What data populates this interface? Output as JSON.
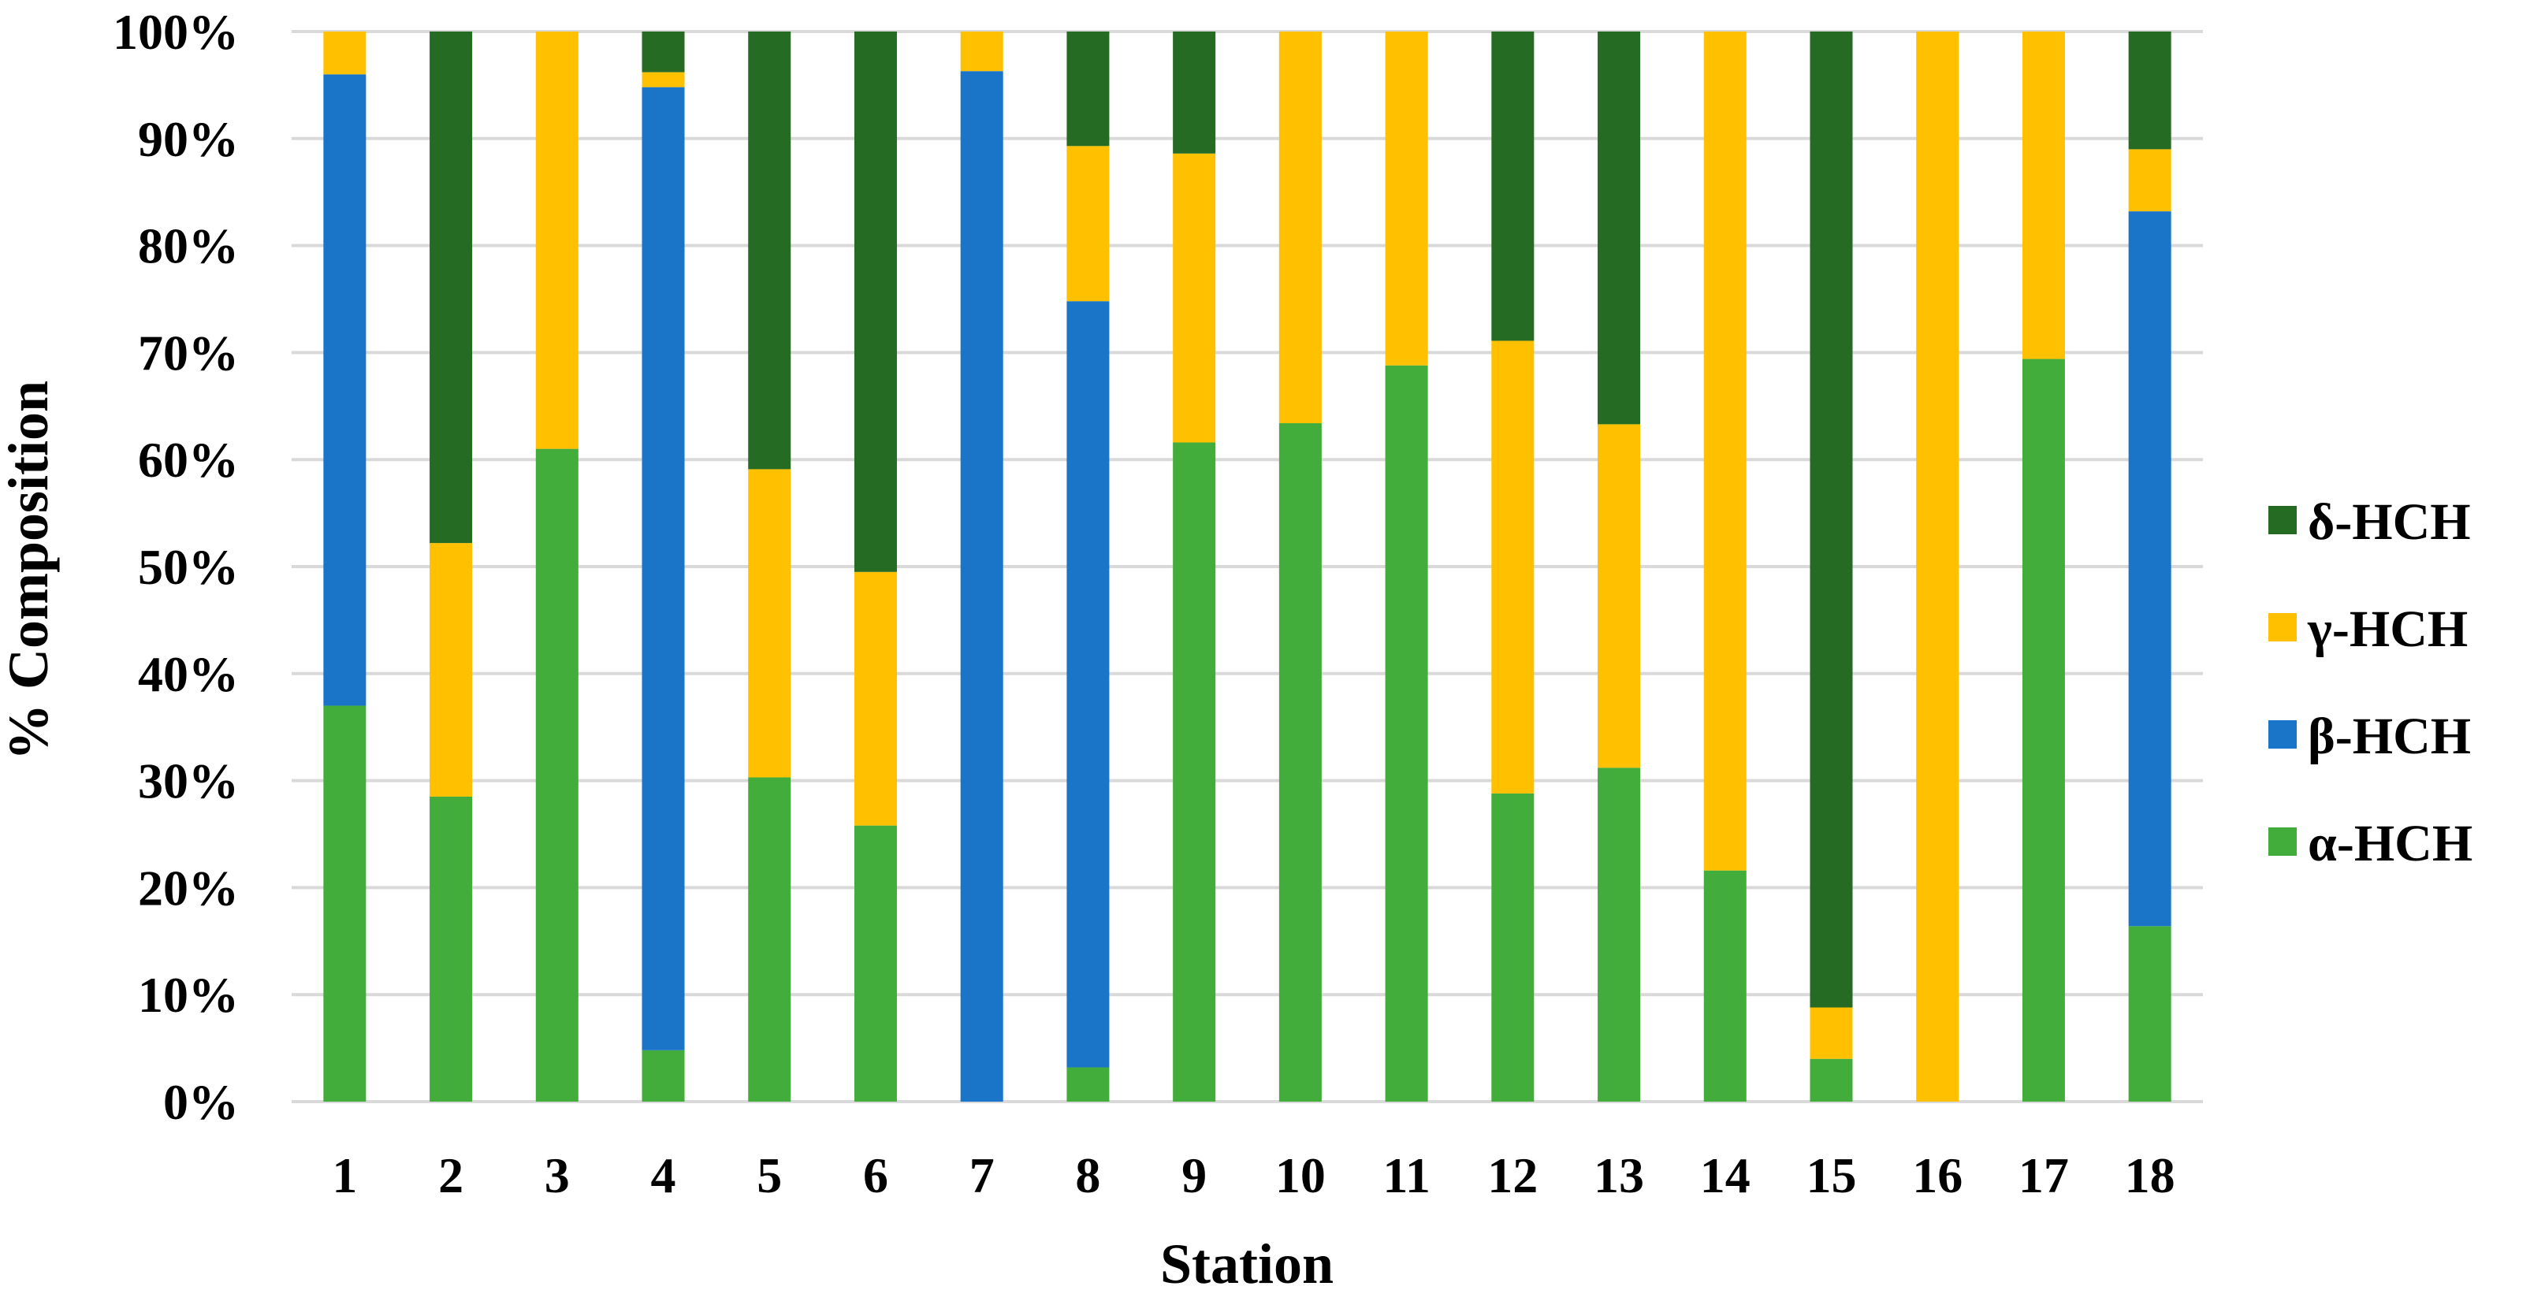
{
  "chart_data": {
    "type": "bar",
    "stacked": true,
    "percent_stacked": true,
    "xlabel": "Station",
    "ylabel": "% Composition",
    "ylim": [
      0,
      100
    ],
    "yticks": [
      "0%",
      "10%",
      "20%",
      "30%",
      "40%",
      "50%",
      "60%",
      "70%",
      "80%",
      "90%",
      "100%"
    ],
    "grid": true,
    "legend_position": "right",
    "categories": [
      "1",
      "2",
      "3",
      "4",
      "5",
      "6",
      "7",
      "8",
      "9",
      "10",
      "11",
      "12",
      "13",
      "14",
      "15",
      "16",
      "17",
      "18"
    ],
    "series": [
      {
        "name": "α-HCH",
        "color": "#43ad3c",
        "values": [
          37,
          28.5,
          61,
          4.8,
          30.3,
          25.8,
          0,
          3.2,
          61.6,
          63.4,
          68.8,
          28.8,
          31.2,
          21.6,
          4,
          0,
          69.4,
          16.4
        ]
      },
      {
        "name": "β-HCH",
        "color": "#1a74c8",
        "values": [
          59,
          0,
          0,
          90,
          0,
          0,
          96.3,
          71.6,
          0,
          0,
          0,
          0,
          0,
          0,
          0,
          0,
          0,
          66.8
        ]
      },
      {
        "name": "γ-HCH",
        "color": "#ffc000",
        "values": [
          4,
          23.7,
          39,
          1.4,
          28.8,
          23.7,
          3.7,
          14.5,
          27,
          36.6,
          31.2,
          42.3,
          32.1,
          78.4,
          4.8,
          100,
          30.6,
          5.8
        ]
      },
      {
        "name": "δ-HCH",
        "color": "#266b23",
        "values": [
          0,
          47.8,
          0,
          3.8,
          40.9,
          50.5,
          0,
          10.7,
          11.4,
          0,
          0,
          28.9,
          36.7,
          0,
          91.2,
          0,
          0,
          11
        ]
      }
    ],
    "legend_order": [
      "δ-HCH",
      "γ-HCH",
      "β-HCH",
      "α-HCH"
    ]
  }
}
